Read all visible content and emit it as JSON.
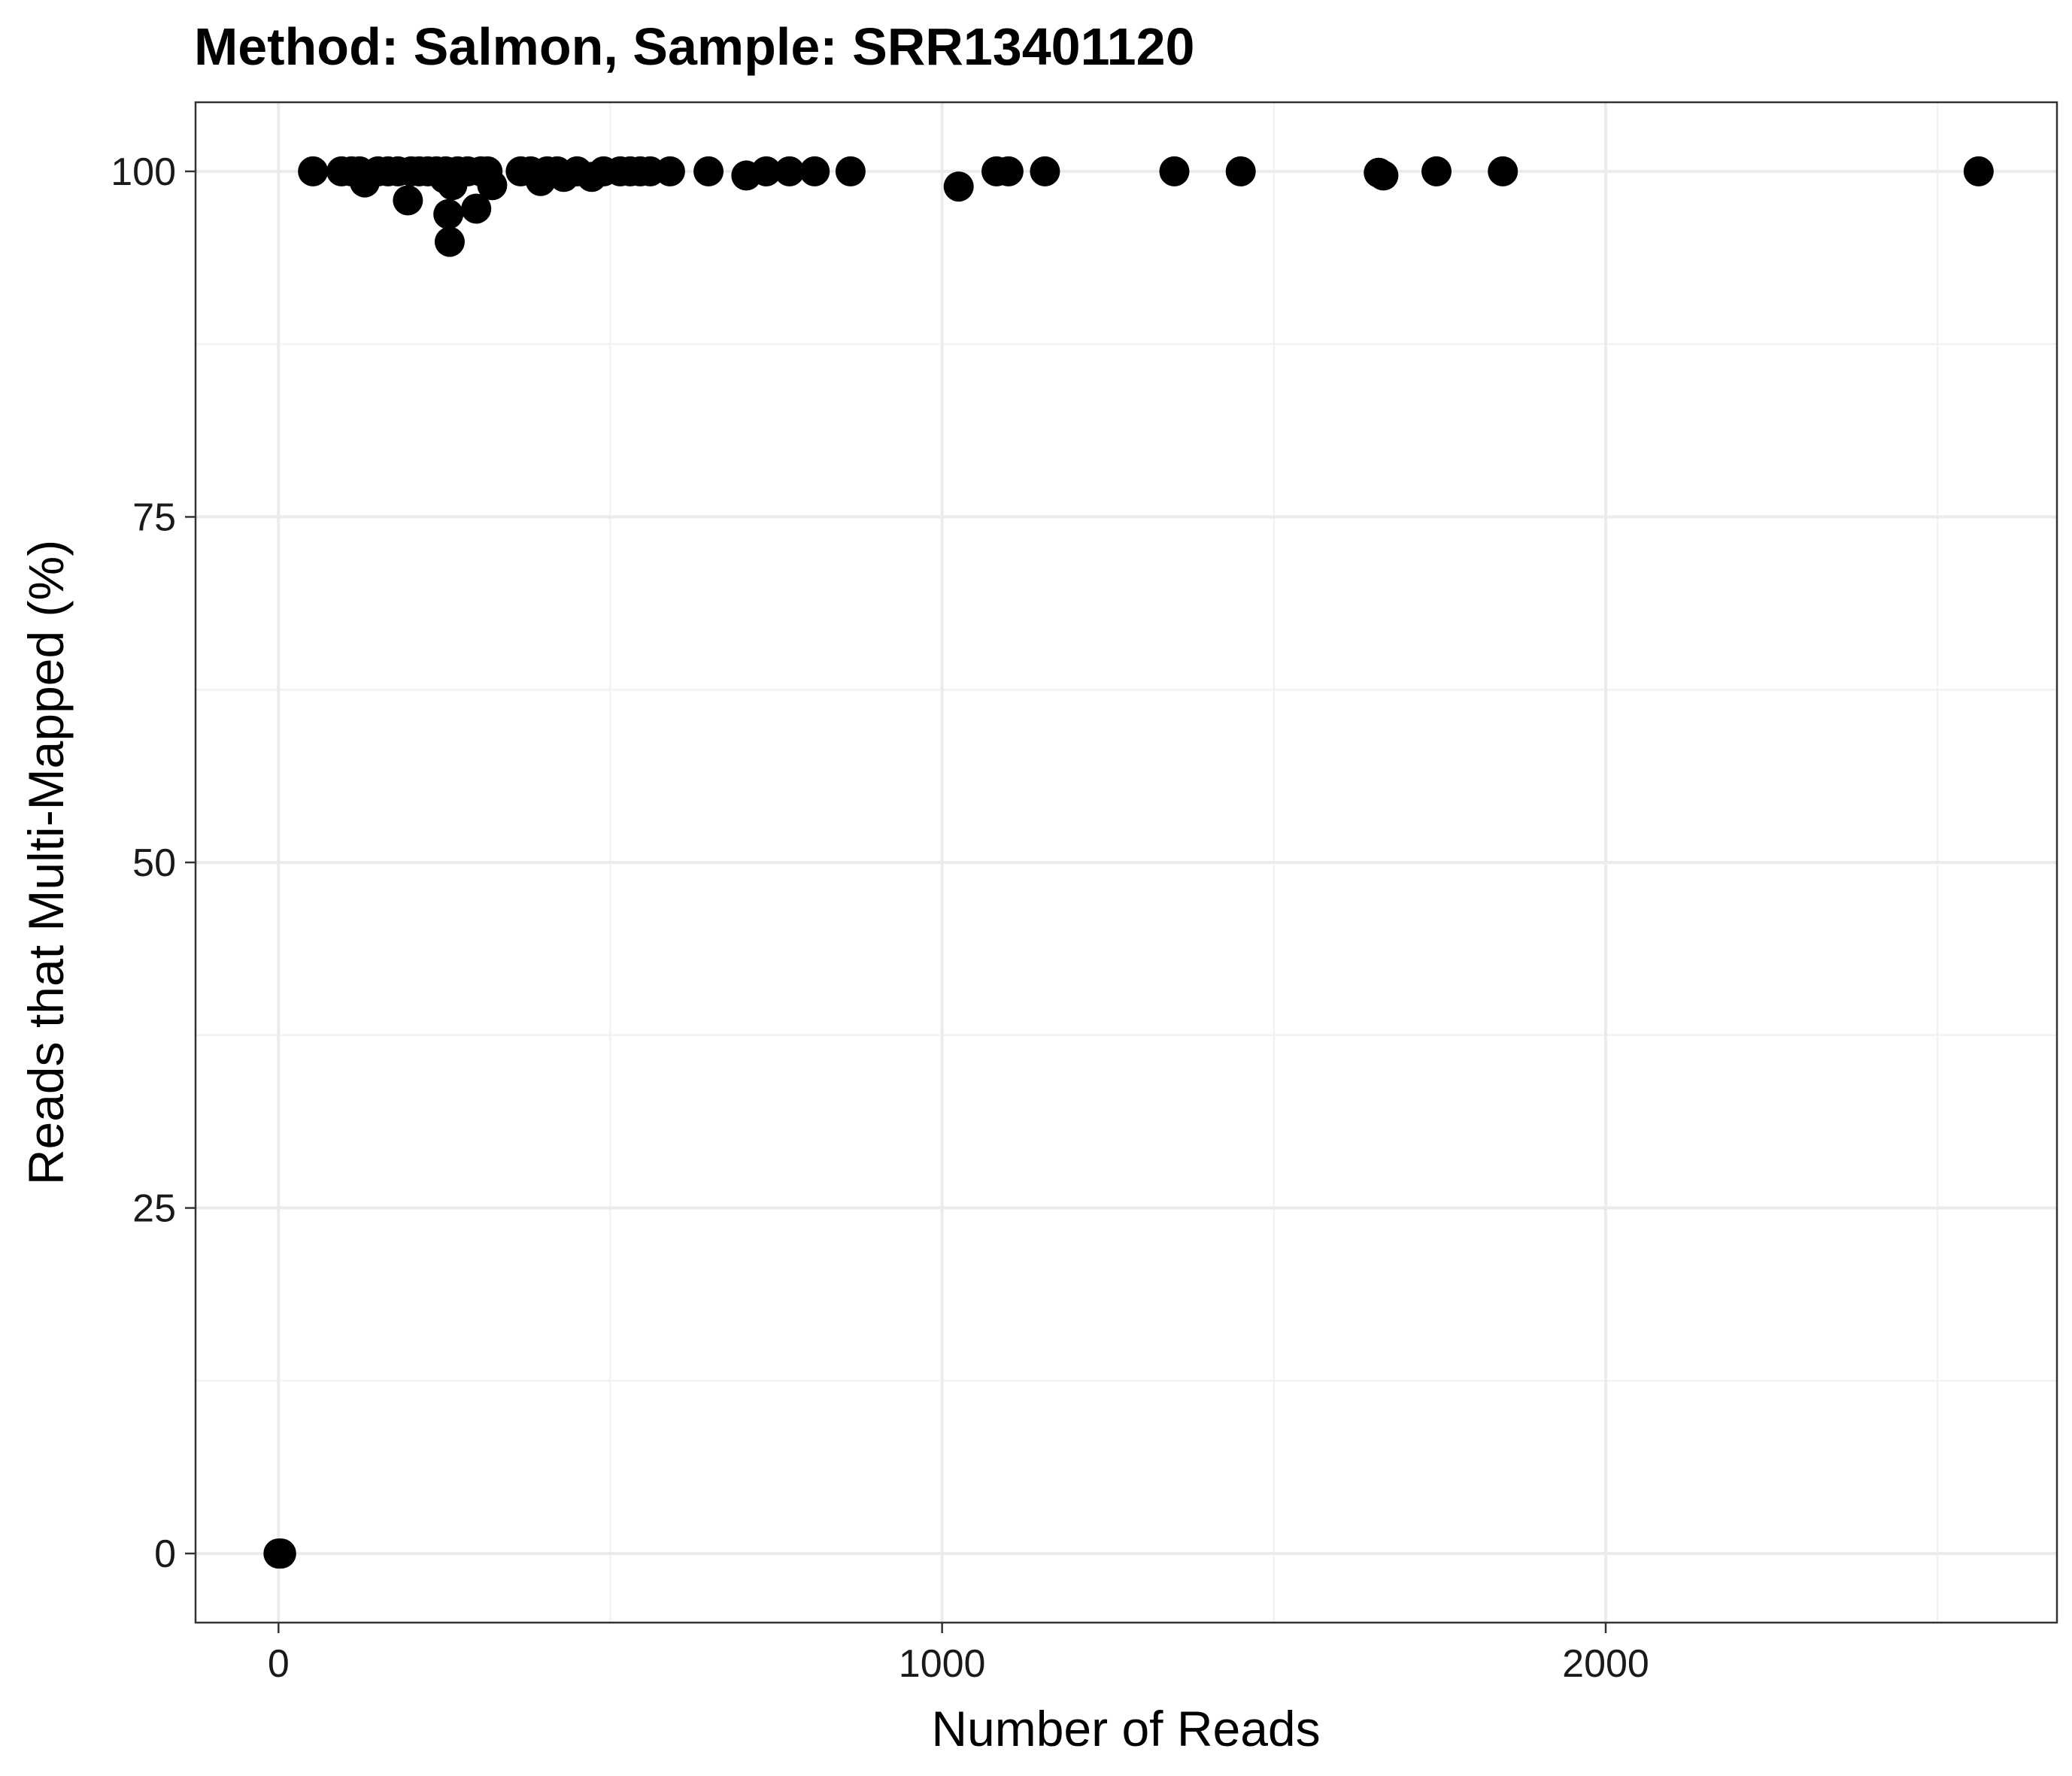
{
  "chart_data": {
    "type": "scatter",
    "title": "Method: Salmon, Sample: SRR13401120",
    "xlabel": "Number of Reads",
    "ylabel": "Reads that Multi-Mapped (%)",
    "xlim": [
      -125,
      2680
    ],
    "ylim": [
      -5,
      105
    ],
    "x_ticks": [
      0,
      1000,
      2000
    ],
    "y_ticks": [
      0,
      25,
      50,
      75,
      100
    ],
    "grid": true,
    "legend": "none",
    "point_color": "#000000",
    "series": [
      {
        "points": [
          [
            0,
            0
          ],
          [
            2,
            0
          ],
          [
            4,
            0
          ],
          [
            52,
            100
          ],
          [
            95,
            100
          ],
          [
            110,
            100
          ],
          [
            122,
            100
          ],
          [
            130,
            99.2
          ],
          [
            150,
            100
          ],
          [
            165,
            100
          ],
          [
            180,
            100
          ],
          [
            195,
            97.9
          ],
          [
            200,
            100
          ],
          [
            212,
            100
          ],
          [
            225,
            100
          ],
          [
            238,
            100
          ],
          [
            250,
            99.5
          ],
          [
            252,
            100
          ],
          [
            256,
            96.9
          ],
          [
            258,
            94.9
          ],
          [
            262,
            99
          ],
          [
            270,
            100
          ],
          [
            285,
            100
          ],
          [
            298,
            97.3
          ],
          [
            305,
            100
          ],
          [
            315,
            100
          ],
          [
            322,
            99
          ],
          [
            365,
            100
          ],
          [
            380,
            100
          ],
          [
            395,
            99.3
          ],
          [
            405,
            100
          ],
          [
            420,
            100
          ],
          [
            430,
            99.6
          ],
          [
            450,
            100
          ],
          [
            472,
            99.6
          ],
          [
            490,
            100
          ],
          [
            515,
            100
          ],
          [
            530,
            100
          ],
          [
            545,
            100
          ],
          [
            560,
            100
          ],
          [
            590,
            100
          ],
          [
            648,
            100
          ],
          [
            705,
            99.7
          ],
          [
            735,
            100
          ],
          [
            770,
            100
          ],
          [
            808,
            100
          ],
          [
            862,
            100
          ],
          [
            1025,
            98.9
          ],
          [
            1082,
            100
          ],
          [
            1100,
            100
          ],
          [
            1155,
            100
          ],
          [
            1350,
            100
          ],
          [
            1450,
            100
          ],
          [
            1658,
            99.9
          ],
          [
            1665,
            99.7
          ],
          [
            1745,
            100
          ],
          [
            1845,
            100
          ],
          [
            2562,
            100
          ]
        ]
      }
    ]
  }
}
